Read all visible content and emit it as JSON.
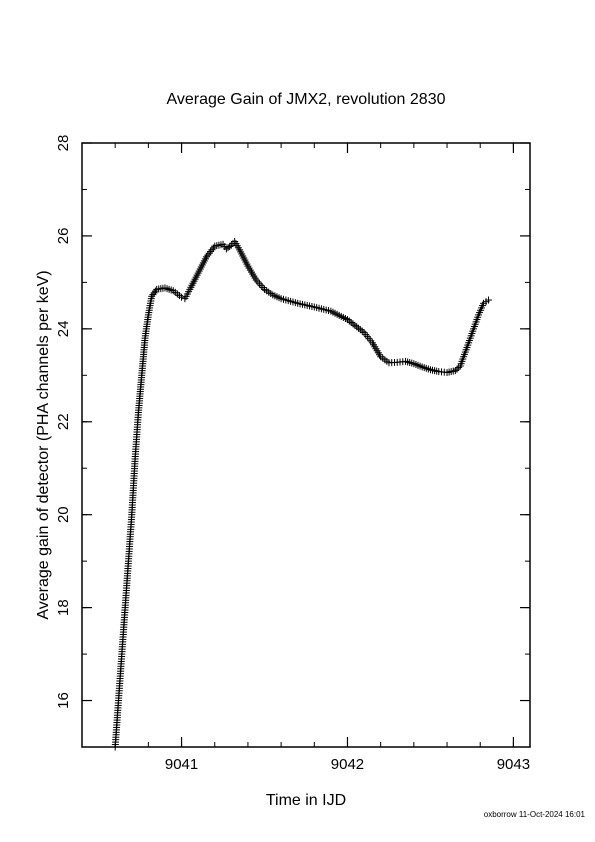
{
  "chart_data": {
    "type": "scatter",
    "title": "Average Gain of JMX2, revolution 2830",
    "xlabel": "Time in IJD",
    "ylabel": "Average gain of detector (PHA channels per keV)",
    "xlim": [
      9040.4,
      9043.1
    ],
    "ylim": [
      15,
      28
    ],
    "xticks": [
      9041,
      9042,
      9043
    ],
    "yticks": [
      16,
      18,
      20,
      22,
      24,
      26,
      28
    ],
    "x_minor_step": 0.2,
    "y_minor_step": 1,
    "marker": "+",
    "color": "#000000",
    "series": [
      {
        "points": [
          [
            9040.6,
            15.0
          ],
          [
            9040.62,
            16.0
          ],
          [
            9040.64,
            17.0
          ],
          [
            9040.66,
            18.0
          ],
          [
            9040.68,
            19.0
          ],
          [
            9040.7,
            20.0
          ],
          [
            9040.72,
            21.2
          ],
          [
            9040.74,
            22.2
          ],
          [
            9040.76,
            23.0
          ],
          [
            9040.78,
            23.8
          ],
          [
            9040.8,
            24.3
          ],
          [
            9040.82,
            24.7
          ],
          [
            9040.85,
            24.85
          ],
          [
            9040.9,
            24.88
          ],
          [
            9040.95,
            24.82
          ],
          [
            9041.0,
            24.68
          ],
          [
            9041.02,
            24.65
          ],
          [
            9041.05,
            24.85
          ],
          [
            9041.1,
            25.2
          ],
          [
            9041.15,
            25.55
          ],
          [
            9041.2,
            25.78
          ],
          [
            9041.25,
            25.82
          ],
          [
            9041.27,
            25.72
          ],
          [
            9041.3,
            25.8
          ],
          [
            9041.32,
            25.88
          ],
          [
            9041.35,
            25.7
          ],
          [
            9041.4,
            25.35
          ],
          [
            9041.45,
            25.05
          ],
          [
            9041.5,
            24.85
          ],
          [
            9041.55,
            24.73
          ],
          [
            9041.6,
            24.65
          ],
          [
            9041.7,
            24.55
          ],
          [
            9041.8,
            24.47
          ],
          [
            9041.9,
            24.38
          ],
          [
            9042.0,
            24.2
          ],
          [
            9042.1,
            23.92
          ],
          [
            9042.15,
            23.7
          ],
          [
            9042.2,
            23.4
          ],
          [
            9042.25,
            23.27
          ],
          [
            9042.3,
            23.28
          ],
          [
            9042.35,
            23.3
          ],
          [
            9042.4,
            23.25
          ],
          [
            9042.45,
            23.18
          ],
          [
            9042.5,
            23.12
          ],
          [
            9042.55,
            23.08
          ],
          [
            9042.6,
            23.06
          ],
          [
            9042.65,
            23.1
          ],
          [
            9042.68,
            23.2
          ],
          [
            9042.7,
            23.4
          ],
          [
            9042.73,
            23.7
          ],
          [
            9042.76,
            24.0
          ],
          [
            9042.79,
            24.3
          ],
          [
            9042.82,
            24.55
          ],
          [
            9042.85,
            24.62
          ]
        ]
      }
    ]
  },
  "footer": {
    "stamp": "oxborrow 11-Oct-2024 16:01"
  }
}
